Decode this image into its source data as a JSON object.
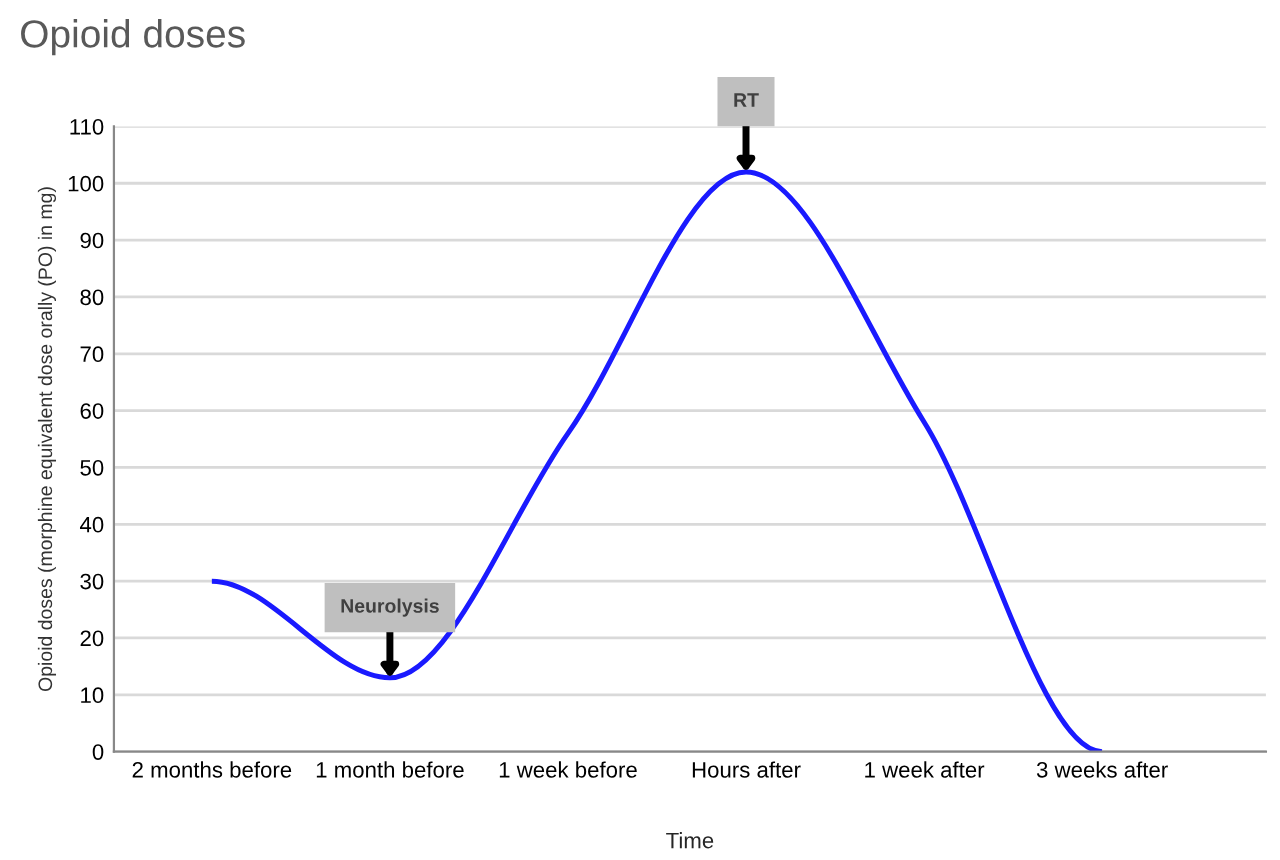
{
  "chart_data": {
    "type": "line",
    "title": "Opioid doses",
    "xlabel": "Time",
    "ylabel": "Opioid doses (morphine equivalent dose orally (PO) in mg)",
    "categories": [
      "2 months before",
      "1 month before",
      "1 week before",
      "Hours after",
      "1 week after",
      "3 weeks after"
    ],
    "series": [
      {
        "color": "#1a1aff",
        "values": [
          30,
          13,
          56,
          102,
          58,
          0
        ]
      }
    ],
    "ylim": [
      0,
      110
    ],
    "yticks": [
      0,
      10,
      20,
      30,
      40,
      50,
      60,
      70,
      80,
      90,
      100,
      110
    ],
    "grid": "y",
    "marker": "none",
    "line_style": "solid",
    "annotations": [
      {
        "text": "Neurolysis",
        "x": "1 month before",
        "y": 13
      },
      {
        "text": "RT",
        "x": "Hours after",
        "y": 102
      }
    ]
  }
}
